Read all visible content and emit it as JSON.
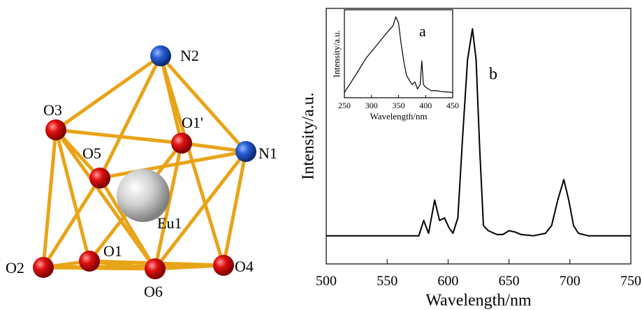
{
  "structure": {
    "atoms": [
      {
        "label": "N2"
      },
      {
        "label": "O3"
      },
      {
        "label": "O1'"
      },
      {
        "label": "N1"
      },
      {
        "label": "O5"
      },
      {
        "label": "Eu1"
      },
      {
        "label": "O2"
      },
      {
        "label": "O1"
      },
      {
        "label": "O6"
      },
      {
        "label": "O4"
      }
    ]
  },
  "chart_data": [
    {
      "type": "line",
      "xlabel": "Wavelength/nm",
      "ylabel": "Intensity/a.u.",
      "annotation": "b",
      "color": "#000000",
      "x": [
        500,
        576,
        580,
        584,
        589,
        593,
        597,
        601,
        604,
        608,
        612,
        616,
        620,
        623,
        626,
        629,
        633,
        640,
        645,
        650,
        655,
        660,
        670,
        680,
        685,
        690,
        695,
        699,
        703,
        707,
        715,
        750
      ],
      "values": [
        11,
        11,
        17,
        12,
        25,
        17,
        18,
        14,
        12,
        18,
        50,
        80,
        92,
        80,
        45,
        15,
        13,
        11.5,
        11.5,
        13,
        12.5,
        11.5,
        11,
        12,
        15,
        25,
        33,
        25,
        15,
        12,
        11,
        11
      ],
      "xlim": [
        500,
        750
      ],
      "xticks": [
        500,
        550,
        600,
        650,
        700,
        750
      ],
      "ylim": [
        0,
        100
      ]
    },
    {
      "type": "line",
      "xlabel": "Wavelength/nm",
      "ylabel": "Intensity/a.u.",
      "annotation": "a",
      "color": "#000000",
      "x": [
        250,
        270,
        290,
        310,
        330,
        340,
        345,
        350,
        355,
        360,
        365,
        370,
        375,
        380,
        385,
        390,
        393,
        396,
        400,
        410,
        420,
        430,
        450
      ],
      "values": [
        6,
        25,
        45,
        60,
        75,
        82,
        92,
        85,
        60,
        40,
        25,
        20,
        15,
        18,
        10,
        15,
        42,
        15,
        12,
        8,
        8,
        7,
        6
      ],
      "xlim": [
        250,
        450
      ],
      "xticks": [
        250,
        300,
        350,
        400,
        450
      ],
      "ylim": [
        0,
        100
      ]
    }
  ]
}
